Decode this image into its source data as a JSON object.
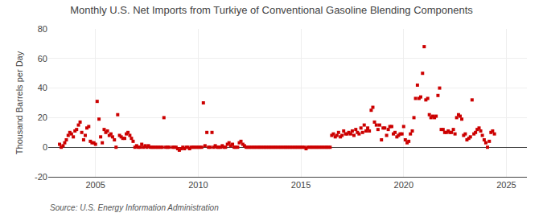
{
  "chart_data": {
    "type": "scatter",
    "title": "Monthly U.S. Net Imports from Turkiye of Conventional Gasoline Blending Components",
    "y_label": "Thousand Barrels per Day",
    "annotations": [
      "Source: U.S. Energy Information Administration"
    ],
    "color": "#CC0000",
    "marker": "square",
    "grid": true,
    "xlim": [
      2002.7,
      2026.0
    ],
    "ylim": [
      -20,
      80
    ],
    "xticks": [
      2005,
      2010,
      2015,
      2020,
      2025
    ],
    "yticks": [
      -20,
      0,
      20,
      40,
      60,
      80
    ],
    "x": [
      2003.25,
      2003.33,
      2003.42,
      2003.5,
      2003.58,
      2003.67,
      2003.75,
      2003.83,
      2003.92,
      2004.0,
      2004.08,
      2004.17,
      2004.25,
      2004.33,
      2004.42,
      2004.5,
      2004.58,
      2004.67,
      2004.75,
      2004.83,
      2004.92,
      2005.0,
      2005.08,
      2005.17,
      2005.25,
      2005.33,
      2005.42,
      2005.5,
      2005.58,
      2005.67,
      2005.75,
      2005.83,
      2005.92,
      2006.0,
      2006.08,
      2006.17,
      2006.25,
      2006.33,
      2006.42,
      2006.5,
      2006.58,
      2006.67,
      2006.75,
      2006.83,
      2006.92,
      2007.0,
      2007.08,
      2007.17,
      2007.25,
      2007.33,
      2007.42,
      2007.5,
      2007.58,
      2007.67,
      2007.75,
      2007.83,
      2007.92,
      2008.0,
      2008.08,
      2008.17,
      2008.25,
      2008.33,
      2008.42,
      2008.5,
      2008.58,
      2008.75,
      2008.83,
      2008.92,
      2009.0,
      2009.08,
      2009.17,
      2009.25,
      2009.33,
      2009.42,
      2009.5,
      2009.58,
      2009.67,
      2009.75,
      2009.83,
      2009.92,
      2010.0,
      2010.08,
      2010.17,
      2010.25,
      2010.33,
      2010.42,
      2010.5,
      2010.58,
      2010.67,
      2010.75,
      2010.83,
      2010.92,
      2011.0,
      2011.08,
      2011.17,
      2011.25,
      2011.33,
      2011.42,
      2011.5,
      2011.58,
      2011.67,
      2011.75,
      2011.83,
      2011.92,
      2012.0,
      2012.08,
      2012.17,
      2012.25,
      2012.33,
      2012.42,
      2012.5,
      2012.58,
      2012.67,
      2012.75,
      2012.83,
      2012.92,
      2013.0,
      2013.08,
      2013.17,
      2013.25,
      2013.33,
      2013.42,
      2013.5,
      2013.58,
      2013.67,
      2013.75,
      2013.83,
      2013.92,
      2014.0,
      2014.08,
      2014.17,
      2014.25,
      2014.33,
      2014.42,
      2014.5,
      2014.58,
      2014.67,
      2014.75,
      2014.83,
      2014.92,
      2015.0,
      2015.08,
      2015.17,
      2015.25,
      2015.33,
      2015.42,
      2015.5,
      2015.58,
      2015.67,
      2015.75,
      2015.83,
      2015.92,
      2016.0,
      2016.08,
      2016.17,
      2016.25,
      2016.33,
      2016.42,
      2016.5,
      2016.58,
      2016.67,
      2016.75,
      2016.83,
      2016.92,
      2017.0,
      2017.08,
      2017.17,
      2017.25,
      2017.33,
      2017.42,
      2017.5,
      2017.58,
      2017.67,
      2017.75,
      2017.83,
      2017.92,
      2018.0,
      2018.08,
      2018.17,
      2018.25,
      2018.33,
      2018.42,
      2018.5,
      2018.58,
      2018.67,
      2018.75,
      2018.83,
      2018.92,
      2019.0,
      2019.08,
      2019.17,
      2019.25,
      2019.33,
      2019.42,
      2019.5,
      2019.58,
      2019.67,
      2019.75,
      2019.83,
      2019.92,
      2020.0,
      2020.08,
      2020.17,
      2020.25,
      2020.33,
      2020.42,
      2020.5,
      2020.58,
      2020.67,
      2020.75,
      2020.83,
      2020.92,
      2021.0,
      2021.08,
      2021.17,
      2021.25,
      2021.33,
      2021.42,
      2021.5,
      2021.58,
      2021.67,
      2021.75,
      2021.83,
      2021.92,
      2022.0,
      2022.08,
      2022.17,
      2022.25,
      2022.33,
      2022.42,
      2022.5,
      2022.58,
      2022.67,
      2022.75,
      2022.83,
      2022.92,
      2023.0,
      2023.08,
      2023.17,
      2023.25,
      2023.33,
      2023.42,
      2023.5,
      2023.58,
      2023.67,
      2023.75,
      2023.83,
      2023.92,
      2024.0,
      2024.08,
      2024.17,
      2024.25,
      2024.33,
      2024.42
    ],
    "values": [
      2,
      0,
      1,
      3,
      5,
      8,
      10,
      9,
      7,
      11,
      12,
      15,
      17,
      10,
      5,
      8,
      13,
      14,
      4,
      3,
      3,
      2,
      31,
      19,
      7,
      3,
      12,
      10,
      11,
      8,
      9,
      7,
      5,
      0,
      22,
      8,
      7,
      6,
      6,
      9,
      10,
      8,
      6,
      4,
      0,
      1,
      0,
      0,
      2,
      0,
      1,
      0,
      1,
      0,
      0,
      0,
      0,
      0,
      0,
      0,
      0,
      20,
      0,
      0,
      0,
      0,
      0,
      0,
      -1,
      -2,
      -1,
      0,
      -1,
      0,
      0,
      -1,
      0,
      0,
      0,
      0,
      0,
      0,
      0,
      30,
      1,
      10,
      0,
      0,
      10,
      0,
      1,
      0,
      0,
      0,
      1,
      0,
      0,
      2,
      3,
      1,
      2,
      0,
      0,
      0,
      3,
      4,
      2,
      1,
      0,
      0,
      0,
      0,
      0,
      0,
      0,
      0,
      0,
      0,
      0,
      0,
      0,
      0,
      0,
      0,
      0,
      0,
      0,
      0,
      0,
      0,
      0,
      0,
      0,
      0,
      0,
      0,
      0,
      0,
      0,
      0,
      0,
      0,
      0,
      -1,
      0,
      0,
      0,
      0,
      0,
      0,
      0,
      0,
      0,
      0,
      0,
      0,
      0,
      0,
      8,
      9,
      7,
      8,
      10,
      7,
      8,
      11,
      9,
      9,
      10,
      9,
      11,
      8,
      12,
      10,
      9,
      13,
      10,
      15,
      11,
      13,
      11,
      25,
      27,
      17,
      15,
      12,
      15,
      5,
      13,
      13,
      8,
      12,
      14,
      14,
      9,
      10,
      7,
      8,
      9,
      9,
      14,
      5,
      3,
      4,
      9,
      11,
      20,
      33,
      42,
      33,
      34,
      50,
      68,
      32,
      33,
      22,
      20,
      21,
      20,
      21,
      35,
      40,
      12,
      12,
      10,
      10,
      11,
      10,
      10,
      12,
      9,
      20,
      22,
      21,
      19,
      8,
      9,
      5,
      6,
      7,
      32,
      9,
      10,
      12,
      13,
      11,
      8,
      5,
      3,
      0,
      4,
      10,
      11,
      9
    ]
  }
}
